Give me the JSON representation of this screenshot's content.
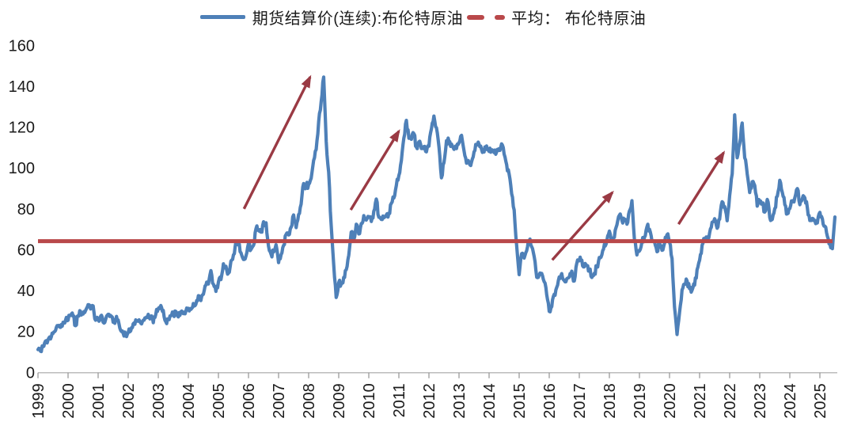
{
  "legend": {
    "price_label": "期货结算价(连续):布伦特原油",
    "average_label": "平均： 布伦特原油"
  },
  "colors": {
    "price_line": "#4e80b8",
    "average_line": "#b9484a",
    "arrow": "#9a3a44",
    "axis_text": "#1a1a1a",
    "axis_line": "#b5b5b5"
  },
  "chart_data": {
    "type": "line",
    "title": "",
    "xlabel": "",
    "ylabel": "",
    "ylim": [
      0,
      160
    ],
    "y_ticks": [
      0,
      20,
      40,
      60,
      80,
      100,
      120,
      140,
      160
    ],
    "x_ticks": [
      1999,
      2000,
      2001,
      2002,
      2003,
      2004,
      2005,
      2006,
      2007,
      2008,
      2009,
      2010,
      2011,
      2012,
      2013,
      2014,
      2015,
      2016,
      2017,
      2018,
      2019,
      2020,
      2021,
      2022,
      2023,
      2024,
      2025
    ],
    "grid": false,
    "legend_position": "top",
    "series": [
      {
        "name": "期货结算价(连续):布伦特原油",
        "color": "#4e80b8",
        "start_year": 1999,
        "step_months": 1,
        "values": [
          11.1,
          10.3,
          12.5,
          15.3,
          15.9,
          16.3,
          19.0,
          20.5,
          22.5,
          22.0,
          24.5,
          25.5,
          25.5,
          27.8,
          27.5,
          22.8,
          27.7,
          29.8,
          28.5,
          30.3,
          33.1,
          31.0,
          32.5,
          25.5,
          25.8,
          27.5,
          24.5,
          25.9,
          28.4,
          27.8,
          24.5,
          25.8,
          25.6,
          20.5,
          19.0,
          18.7,
          19.4,
          20.3,
          23.7,
          25.7,
          25.0,
          24.1,
          25.5,
          26.6,
          28.4,
          27.5,
          24.3,
          28.3,
          31.2,
          32.7,
          30.3,
          24.8,
          25.8,
          27.6,
          28.4,
          29.8,
          27.1,
          29.6,
          28.7,
          29.8,
          31.3,
          30.8,
          33.7,
          33.3,
          37.5,
          35.1,
          38.2,
          42.7,
          43.2,
          49.8,
          43.1,
          39.6,
          44.2,
          45.4,
          53.1,
          51.9,
          48.6,
          54.4,
          57.5,
          64.1,
          62.9,
          58.5,
          55.2,
          56.9,
          63.1,
          60.2,
          62.1,
          70.3,
          69.8,
          68.6,
          73.7,
          73.2,
          61.7,
          57.8,
          58.9,
          62.5,
          53.7,
          57.6,
          62.1,
          67.5,
          67.2,
          71.0,
          77.0,
          70.8,
          77.2,
          82.3,
          92.4,
          91.0,
          92.0,
          95.0,
          103.7,
          109.0,
          122.8,
          132.3,
          144.5,
          113.0,
          98.0,
          71.9,
          52.5,
          36.6,
          43.9,
          43.3,
          46.5,
          50.2,
          57.3,
          68.6,
          64.9,
          72.5,
          67.7,
          72.8,
          76.7,
          74.5,
          76.2,
          73.8,
          78.8,
          84.8,
          75.9,
          74.8,
          75.6,
          77.0,
          77.8,
          82.7,
          85.3,
          91.4,
          96.3,
          103.7,
          114.6,
          123.3,
          114.5,
          114.0,
          116.8,
          110.2,
          112.8,
          109.5,
          110.5,
          107.9,
          110.7,
          119.3,
          125.4,
          119.7,
          110.3,
          95.2,
          102.6,
          113.4,
          113.0,
          111.7,
          109.1,
          109.5,
          112.3,
          116.0,
          108.5,
          102.3,
          102.6,
          102.9,
          107.9,
          111.3,
          111.6,
          109.1,
          107.8,
          110.8,
          108.1,
          108.9,
          107.5,
          107.8,
          109.5,
          111.8,
          106.8,
          101.6,
          97.1,
          87.4,
          79.4,
          62.3,
          47.8,
          58.1,
          55.9,
          59.5,
          64.5,
          61.5,
          56.6,
          46.5,
          47.6,
          48.4,
          44.3,
          38.0,
          29.8,
          32.2,
          38.2,
          41.6,
          46.7,
          48.3,
          44.9,
          45.8,
          46.6,
          49.5,
          44.7,
          53.3,
          54.6,
          54.9,
          51.6,
          52.3,
          50.3,
          46.4,
          48.5,
          51.7,
          56.2,
          57.5,
          62.7,
          64.4,
          69.1,
          65.3,
          66.0,
          72.1,
          76.9,
          74.4,
          74.2,
          72.5,
          78.9,
          84.0,
          64.7,
          57.4,
          59.4,
          63.9,
          66.1,
          71.2,
          70.0,
          64.2,
          63.9,
          59.0,
          64.0,
          59.7,
          63.2,
          67.3,
          63.6,
          55.7,
          32.0,
          18.5,
          29.4,
          40.3,
          43.2,
          44.7,
          40.9,
          40.2,
          42.7,
          50.2,
          54.8,
          62.3,
          65.4,
          64.8,
          68.3,
          73.4,
          75.2,
          70.5,
          74.9,
          83.5,
          81.1,
          74.2,
          86.5,
          97.1,
          126.0,
          105.0,
          112.0,
          122.0,
          105.0,
          97.0,
          88.0,
          93.3,
          91.4,
          81.3,
          83.9,
          82.8,
          78.4,
          84.6,
          75.7,
          74.8,
          80.1,
          86.2,
          94.0,
          88.1,
          82.0,
          77.6,
          80.1,
          83.5,
          85.4,
          89.9,
          82.0,
          85.0,
          85.3,
          80.4,
          74.3,
          75.3,
          74.3,
          73.1,
          78.3,
          75.0,
          71.5,
          66.5,
          63.0,
          60.5,
          76.0
        ]
      },
      {
        "name": "平均： 布伦特原油",
        "color": "#b9484a",
        "type": "constant",
        "value": 64.2
      }
    ],
    "annotations": [
      {
        "kind": "arrow",
        "x1": 2005.85,
        "y1": 80.0,
        "x2": 2008.05,
        "y2": 144.5
      },
      {
        "kind": "arrow",
        "x1": 2009.4,
        "y1": 79.5,
        "x2": 2011.0,
        "y2": 118.0
      },
      {
        "kind": "arrow",
        "x1": 2016.1,
        "y1": 55.0,
        "x2": 2018.1,
        "y2": 88.0
      },
      {
        "kind": "arrow",
        "x1": 2020.3,
        "y1": 72.5,
        "x2": 2021.8,
        "y2": 107.5
      }
    ]
  }
}
